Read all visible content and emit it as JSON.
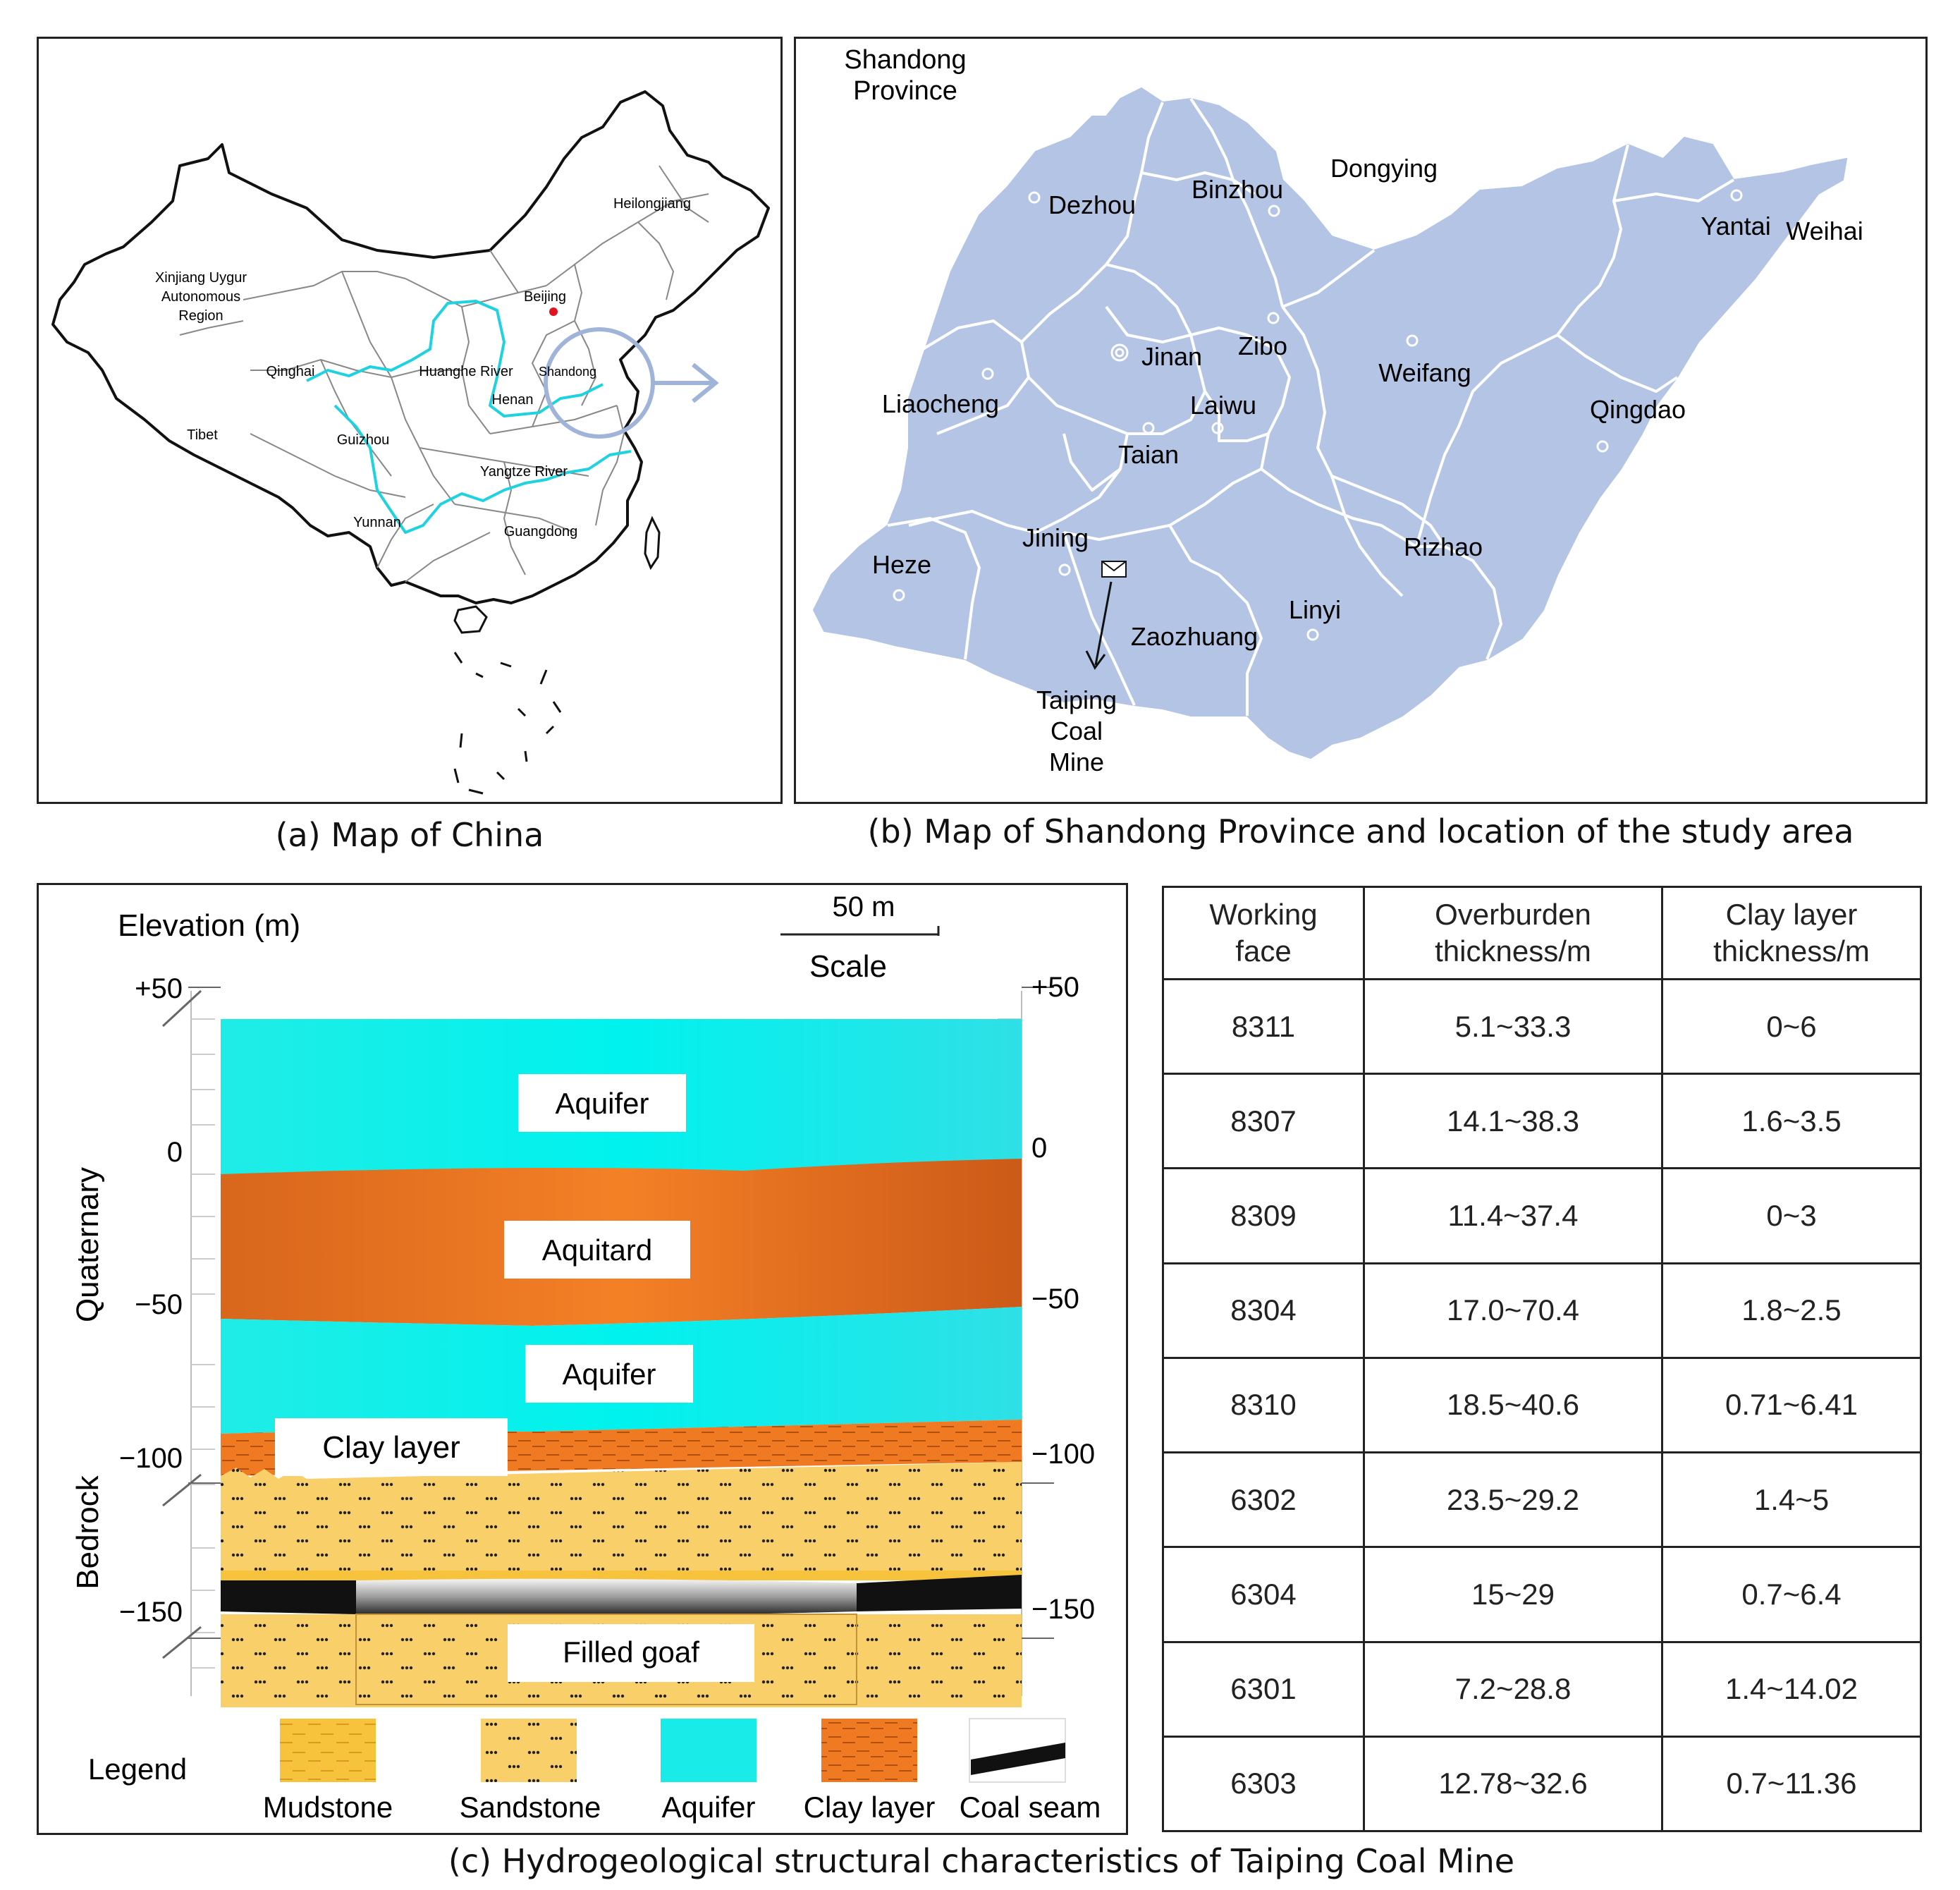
{
  "panel_a": {
    "caption": "(a) Map of China",
    "labels": {
      "heilongjiang": "Heilongjiang",
      "xinjiang_1": "Xinjiang Uygur",
      "xinjiang_2": "Autonomous",
      "xinjiang_3": "Region",
      "beijing": "Beijing",
      "qinghai": "Qinghai",
      "huanghe": "Huanghe River",
      "shandong": "Shandong",
      "henan": "Henan",
      "tibet": "Tibet",
      "guizhou": "Guizhou",
      "yangtze": "Yangtze River",
      "yunnan": "Yunnan",
      "guangdong": "Guangdong"
    },
    "colors": {
      "river": "#1fd2e0",
      "highlight": "#9fb4d8",
      "capital": "#e0141e"
    }
  },
  "panel_b": {
    "caption": "(b) Map of Shandong Province and location of the study area",
    "title_1": "Shandong",
    "title_2": "Province",
    "cities": {
      "dezhou": "Dezhou",
      "binzhou": "Binzhou",
      "dongying": "Dongying",
      "yantai": "Yantai",
      "weihai": "Weihai",
      "jinan": "Jinan",
      "zibo": "Zibo",
      "weifang": "Weifang",
      "liaocheng": "Liaocheng",
      "laiwu": "Laiwu",
      "qingdao": "Qingdao",
      "taian": "Taian",
      "jining": "Jining",
      "heze": "Heze",
      "rizhao": "Rizhao",
      "linyi": "Linyi",
      "zaozhuang": "Zaozhuang"
    },
    "mine_1": "Taiping",
    "mine_2": "Coal",
    "mine_3": "Mine",
    "colors": {
      "land": "#b3c4e4",
      "border": "#ffffff"
    }
  },
  "panel_c": {
    "caption": "(c) Hydrogeological structural characteristics of Taiping Coal Mine",
    "elevation_label": "Elevation (m)",
    "scale_value": "50 m",
    "scale_label": "Scale",
    "ticks_left": [
      "+50",
      "0",
      "−50",
      "−100",
      "−150"
    ],
    "ticks_right": [
      "+50",
      "0",
      "−50",
      "−100",
      "−150"
    ],
    "side_labels": {
      "quaternary": "Quaternary",
      "bedrock": "Bedrock"
    },
    "layers": {
      "aquifer_top": "Aquifer",
      "aquitard": "Aquitard",
      "aquifer_mid": "Aquifer",
      "clay": "Clay layer",
      "goaf": "Filled goaf"
    },
    "legend_title": "Legend",
    "legend": [
      {
        "label": "Mudstone",
        "color": "#f7c23c"
      },
      {
        "label": "Sandstone",
        "color": "#f9d577"
      },
      {
        "label": "Aquifer",
        "color": "#19ece8"
      },
      {
        "label": "Clay layer",
        "color": "#f07a24"
      },
      {
        "label": "Coal seam",
        "color": "#111111"
      }
    ]
  },
  "table": {
    "headers": [
      {
        "line1": "Working",
        "line2": "face"
      },
      {
        "line1": "Overburden",
        "line2": "thickness/m"
      },
      {
        "line1": "Clay layer",
        "line2": "thickness/m"
      }
    ],
    "rows": [
      [
        "8311",
        "5.1~33.3",
        "0~6"
      ],
      [
        "8307",
        "14.1~38.3",
        "1.6~3.5"
      ],
      [
        "8309",
        "11.4~37.4",
        "0~3"
      ],
      [
        "8304",
        "17.0~70.4",
        "1.8~2.5"
      ],
      [
        "8310",
        "18.5~40.6",
        "0.71~6.41"
      ],
      [
        "6302",
        "23.5~29.2",
        "1.4~5"
      ],
      [
        "6304",
        "15~29",
        "0.7~6.4"
      ],
      [
        "6301",
        "7.2~28.8",
        "1.4~14.02"
      ],
      [
        "6303",
        "12.78~32.6",
        "0.7~11.36"
      ]
    ]
  }
}
